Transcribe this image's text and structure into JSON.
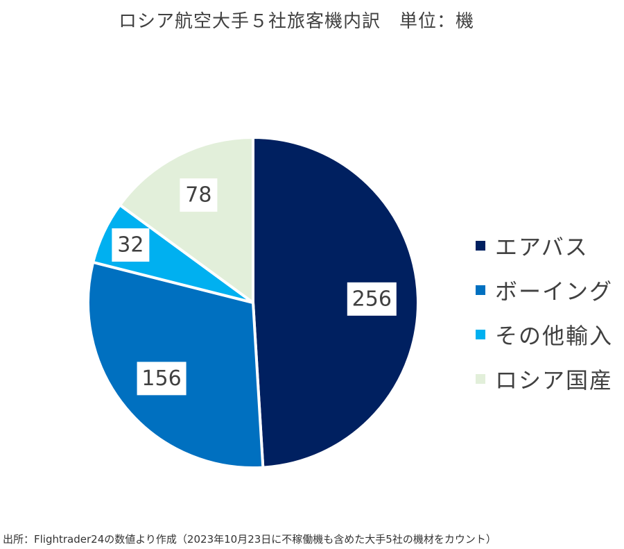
{
  "chart_data": {
    "type": "pie",
    "title": "ロシア航空大手５社旅客機内訳　単位：機",
    "categories": [
      "エアバス",
      "ボーイング",
      "その他輸入",
      "ロシア国産"
    ],
    "values": [
      256,
      156,
      32,
      78
    ],
    "data_labels": [
      "256",
      "156",
      "32",
      "78"
    ],
    "colors": [
      "#002060",
      "#0070C0",
      "#00B0F0",
      "#E2EFDA"
    ],
    "legend_position": "right",
    "start_angle": "12 o'clock",
    "direction": "clockwise"
  },
  "source_note": "出所：Flightrader24の数値より作成（2023年10月23日に不稼働機も含めた大手5社の機材をカウント）"
}
